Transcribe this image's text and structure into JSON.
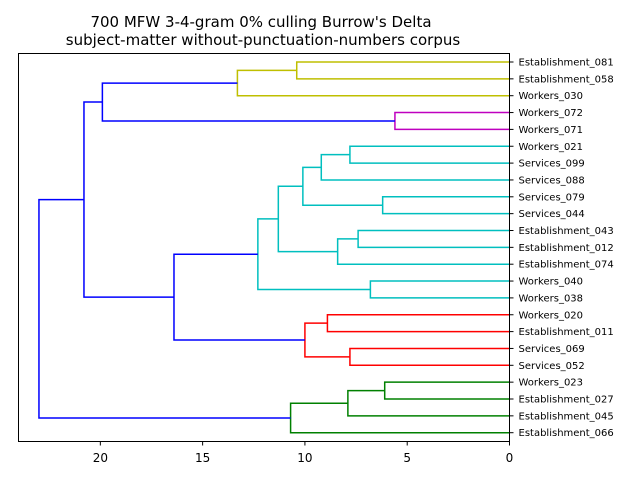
{
  "chart_data": {
    "type": "dendrogram",
    "title": [
      "700 MFW 3-4-gram 0% culling Burrow's Delta",
      "subject-matter without-punctuation-numbers corpus"
    ],
    "orientation": "left",
    "x_ticks": [
      20,
      15,
      10,
      5,
      0
    ],
    "x_range": [
      24,
      0
    ],
    "leaves": [
      "Establishment_081",
      "Establishment_058",
      "Workers_030",
      "Workers_072",
      "Workers_071",
      "Workers_021",
      "Services_099",
      "Services_088",
      "Services_079",
      "Services_044",
      "Establishment_043",
      "Establishment_012",
      "Establishment_074",
      "Workers_040",
      "Workers_038",
      "Workers_020",
      "Establishment_011",
      "Services_069",
      "Services_052",
      "Workers_023",
      "Establishment_027",
      "Establishment_045",
      "Establishment_066"
    ],
    "colors": {
      "yellow": "#bfbf00",
      "magenta": "#bf00bf",
      "cyan": "#00bfbf",
      "red": "#ff0000",
      "green": "#008000",
      "blue": "#0000ff"
    },
    "merges": [
      {
        "id": "A",
        "left": 0,
        "right": 1,
        "height": 10.4,
        "color": "yellow"
      },
      {
        "id": "B",
        "left": "A",
        "right": 2,
        "height": 13.3,
        "color": "yellow"
      },
      {
        "id": "C",
        "left": 3,
        "right": 4,
        "height": 5.6,
        "color": "magenta"
      },
      {
        "id": "D",
        "left": "B",
        "right": "C",
        "height": 19.9,
        "color": "blue"
      },
      {
        "id": "E",
        "left": 5,
        "right": 6,
        "height": 7.8,
        "color": "cyan"
      },
      {
        "id": "F",
        "left": "E",
        "right": 7,
        "height": 9.2,
        "color": "cyan"
      },
      {
        "id": "G",
        "left": 8,
        "right": 9,
        "height": 6.2,
        "color": "cyan"
      },
      {
        "id": "H",
        "left": "F",
        "right": "G",
        "height": 10.1,
        "color": "cyan"
      },
      {
        "id": "I",
        "left": 10,
        "right": 11,
        "height": 7.4,
        "color": "cyan"
      },
      {
        "id": "J",
        "left": "I",
        "right": 12,
        "height": 8.4,
        "color": "cyan"
      },
      {
        "id": "K",
        "left": "H",
        "right": "J",
        "height": 11.3,
        "color": "cyan"
      },
      {
        "id": "L",
        "left": 13,
        "right": 14,
        "height": 6.8,
        "color": "cyan"
      },
      {
        "id": "M",
        "left": "K",
        "right": "L",
        "height": 12.3,
        "color": "cyan"
      },
      {
        "id": "N",
        "left": 15,
        "right": 16,
        "height": 8.9,
        "color": "red"
      },
      {
        "id": "O",
        "left": 17,
        "right": 18,
        "height": 7.8,
        "color": "red"
      },
      {
        "id": "P",
        "left": "N",
        "right": "O",
        "height": 10.0,
        "color": "red"
      },
      {
        "id": "Q",
        "left": "M",
        "right": "P",
        "height": 16.4,
        "color": "blue"
      },
      {
        "id": "R",
        "left": "D",
        "right": "Q",
        "height": 20.8,
        "color": "blue"
      },
      {
        "id": "S",
        "left": 19,
        "right": 20,
        "height": 6.1,
        "color": "green"
      },
      {
        "id": "T",
        "left": "S",
        "right": 21,
        "height": 7.9,
        "color": "green"
      },
      {
        "id": "U",
        "left": "T",
        "right": 22,
        "height": 10.7,
        "color": "green"
      },
      {
        "id": "V",
        "left": "R",
        "right": "U",
        "height": 23.0,
        "color": "blue"
      }
    ]
  }
}
